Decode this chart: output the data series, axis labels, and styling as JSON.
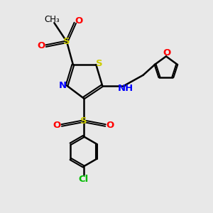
{
  "bg_color": "#e8e8e8",
  "atom_colors": {
    "S": "#cccc00",
    "N": "#0000ff",
    "O": "#ff0000",
    "Cl": "#00bb00",
    "C": "#000000",
    "H": "#555555"
  },
  "bond_color": "#000000",
  "figsize": [
    3.0,
    3.0
  ],
  "dpi": 100
}
